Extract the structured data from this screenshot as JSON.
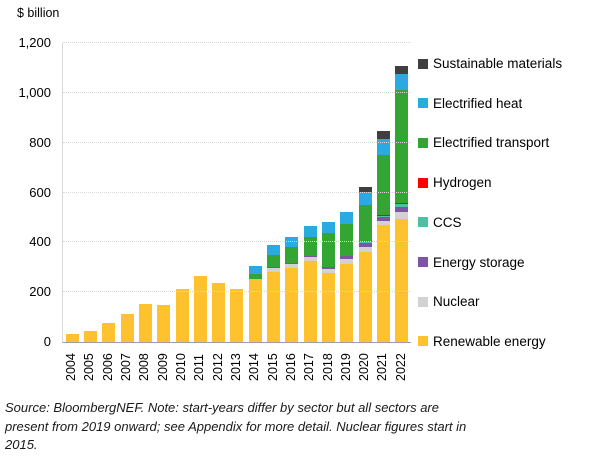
{
  "chart": {
    "title": "$ billion",
    "footer_lines": [
      "Source: BloombergNEF. Note: start-years differ by sector but all sectors are",
      "present from 2019 onward; see Appendix for more detail. Nuclear figures start in",
      "2015."
    ]
  },
  "chart_data": {
    "type": "bar",
    "stacked": true,
    "title": "$ billion",
    "xlabel": "",
    "ylabel": "$ billion",
    "ylim": [
      0,
      1200
    ],
    "grid": "horizontal-dotted",
    "legend_position": "right",
    "categories": [
      "2004",
      "2005",
      "2006",
      "2007",
      "2008",
      "2009",
      "2010",
      "2011",
      "2012",
      "2013",
      "2014",
      "2015",
      "2016",
      "2017",
      "2018",
      "2019",
      "2020",
      "2021",
      "2022"
    ],
    "y_ticks": [
      0,
      200,
      400,
      600,
      800,
      1000,
      1200
    ],
    "y_tick_labels": [
      "0",
      "200",
      "400",
      "600",
      "800",
      "1,000",
      "1,200"
    ],
    "series_bottom_to_top": [
      {
        "name": "Renewable energy",
        "color": "#FDC22D",
        "values": [
          33,
          45,
          75,
          112,
          152,
          147,
          214,
          264,
          236,
          212,
          254,
          282,
          297,
          325,
          276,
          315,
          362,
          470,
          495
        ]
      },
      {
        "name": "Nuclear",
        "color": "#D2D2D2",
        "values": [
          0,
          0,
          0,
          0,
          0,
          0,
          0,
          0,
          0,
          0,
          0,
          15,
          16,
          15,
          18,
          20,
          18,
          17,
          25
        ]
      },
      {
        "name": "Energy storage",
        "color": "#7D55A4",
        "values": [
          0,
          0,
          0,
          0,
          0,
          0,
          0,
          0,
          0,
          0,
          0,
          4,
          6,
          6,
          8,
          10,
          17,
          16,
          20
        ]
      },
      {
        "name": "CCS",
        "color": "#4FBFA3",
        "values": [
          0,
          0,
          0,
          0,
          0,
          0,
          0,
          0,
          0,
          0,
          0,
          0,
          0,
          0,
          0,
          0,
          3,
          3,
          15
        ]
      },
      {
        "name": "Hydrogen",
        "color": "#FF0000",
        "values": [
          0,
          0,
          0,
          0,
          0,
          0,
          0,
          0,
          0,
          0,
          0,
          0,
          0,
          0,
          0,
          0,
          0,
          2,
          3
        ]
      },
      {
        "name": "Electrified transport",
        "color": "#33A532",
        "values": [
          0,
          0,
          0,
          0,
          0,
          0,
          0,
          0,
          0,
          0,
          21,
          48,
          61,
          77,
          136,
          130,
          148,
          241,
          455
        ]
      },
      {
        "name": "Electrified heat",
        "color": "#29ABE2",
        "values": [
          0,
          0,
          0,
          0,
          0,
          0,
          0,
          0,
          0,
          0,
          32,
          40,
          41,
          44,
          44,
          47,
          54,
          66,
          62
        ]
      },
      {
        "name": "Sustainable materials",
        "color": "#3F3F3F",
        "values": [
          0,
          0,
          0,
          0,
          0,
          0,
          0,
          0,
          0,
          0,
          0,
          0,
          0,
          0,
          0,
          0,
          20,
          34,
          35
        ]
      }
    ],
    "totals": [
      33,
      45,
      75,
      112,
      152,
      147,
      214,
      264,
      236,
      212,
      307,
      389,
      421,
      467,
      482,
      522,
      622,
      849,
      1110
    ],
    "legend_top_to_bottom": [
      "Sustainable materials",
      "Electrified heat",
      "Electrified transport",
      "Hydrogen",
      "CCS",
      "Energy storage",
      "Nuclear",
      "Renewable energy"
    ],
    "source_note": "Source: BloombergNEF. Note: start-years differ by sector but all sectors are present from 2019 onward; see Appendix for more detail. Nuclear figures start in 2015."
  }
}
